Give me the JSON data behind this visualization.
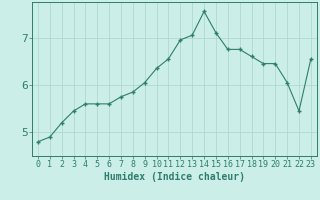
{
  "x": [
    0,
    1,
    2,
    3,
    4,
    5,
    6,
    7,
    8,
    9,
    10,
    11,
    12,
    13,
    14,
    15,
    16,
    17,
    18,
    19,
    20,
    21,
    22,
    23
  ],
  "y": [
    4.8,
    4.9,
    5.2,
    5.45,
    5.6,
    5.6,
    5.6,
    5.75,
    5.85,
    6.05,
    6.35,
    6.55,
    6.95,
    7.05,
    7.55,
    7.1,
    6.75,
    6.75,
    6.6,
    6.45,
    6.45,
    6.05,
    5.45,
    6.55
  ],
  "line_color": "#2e7d6e",
  "marker": "+",
  "marker_size": 3,
  "bg_color": "#cceee8",
  "grid_color": "#aad4cc",
  "axis_color": "#2e7d6e",
  "xlabel": "Humidex (Indice chaleur)",
  "xlim": [
    -0.5,
    23.5
  ],
  "ylim": [
    4.5,
    7.75
  ],
  "yticks": [
    5,
    6,
    7
  ],
  "xticks": [
    0,
    1,
    2,
    3,
    4,
    5,
    6,
    7,
    8,
    9,
    10,
    11,
    12,
    13,
    14,
    15,
    16,
    17,
    18,
    19,
    20,
    21,
    22,
    23
  ],
  "xlabel_fontsize": 7,
  "tick_fontsize": 6,
  "ytick_fontsize": 8
}
